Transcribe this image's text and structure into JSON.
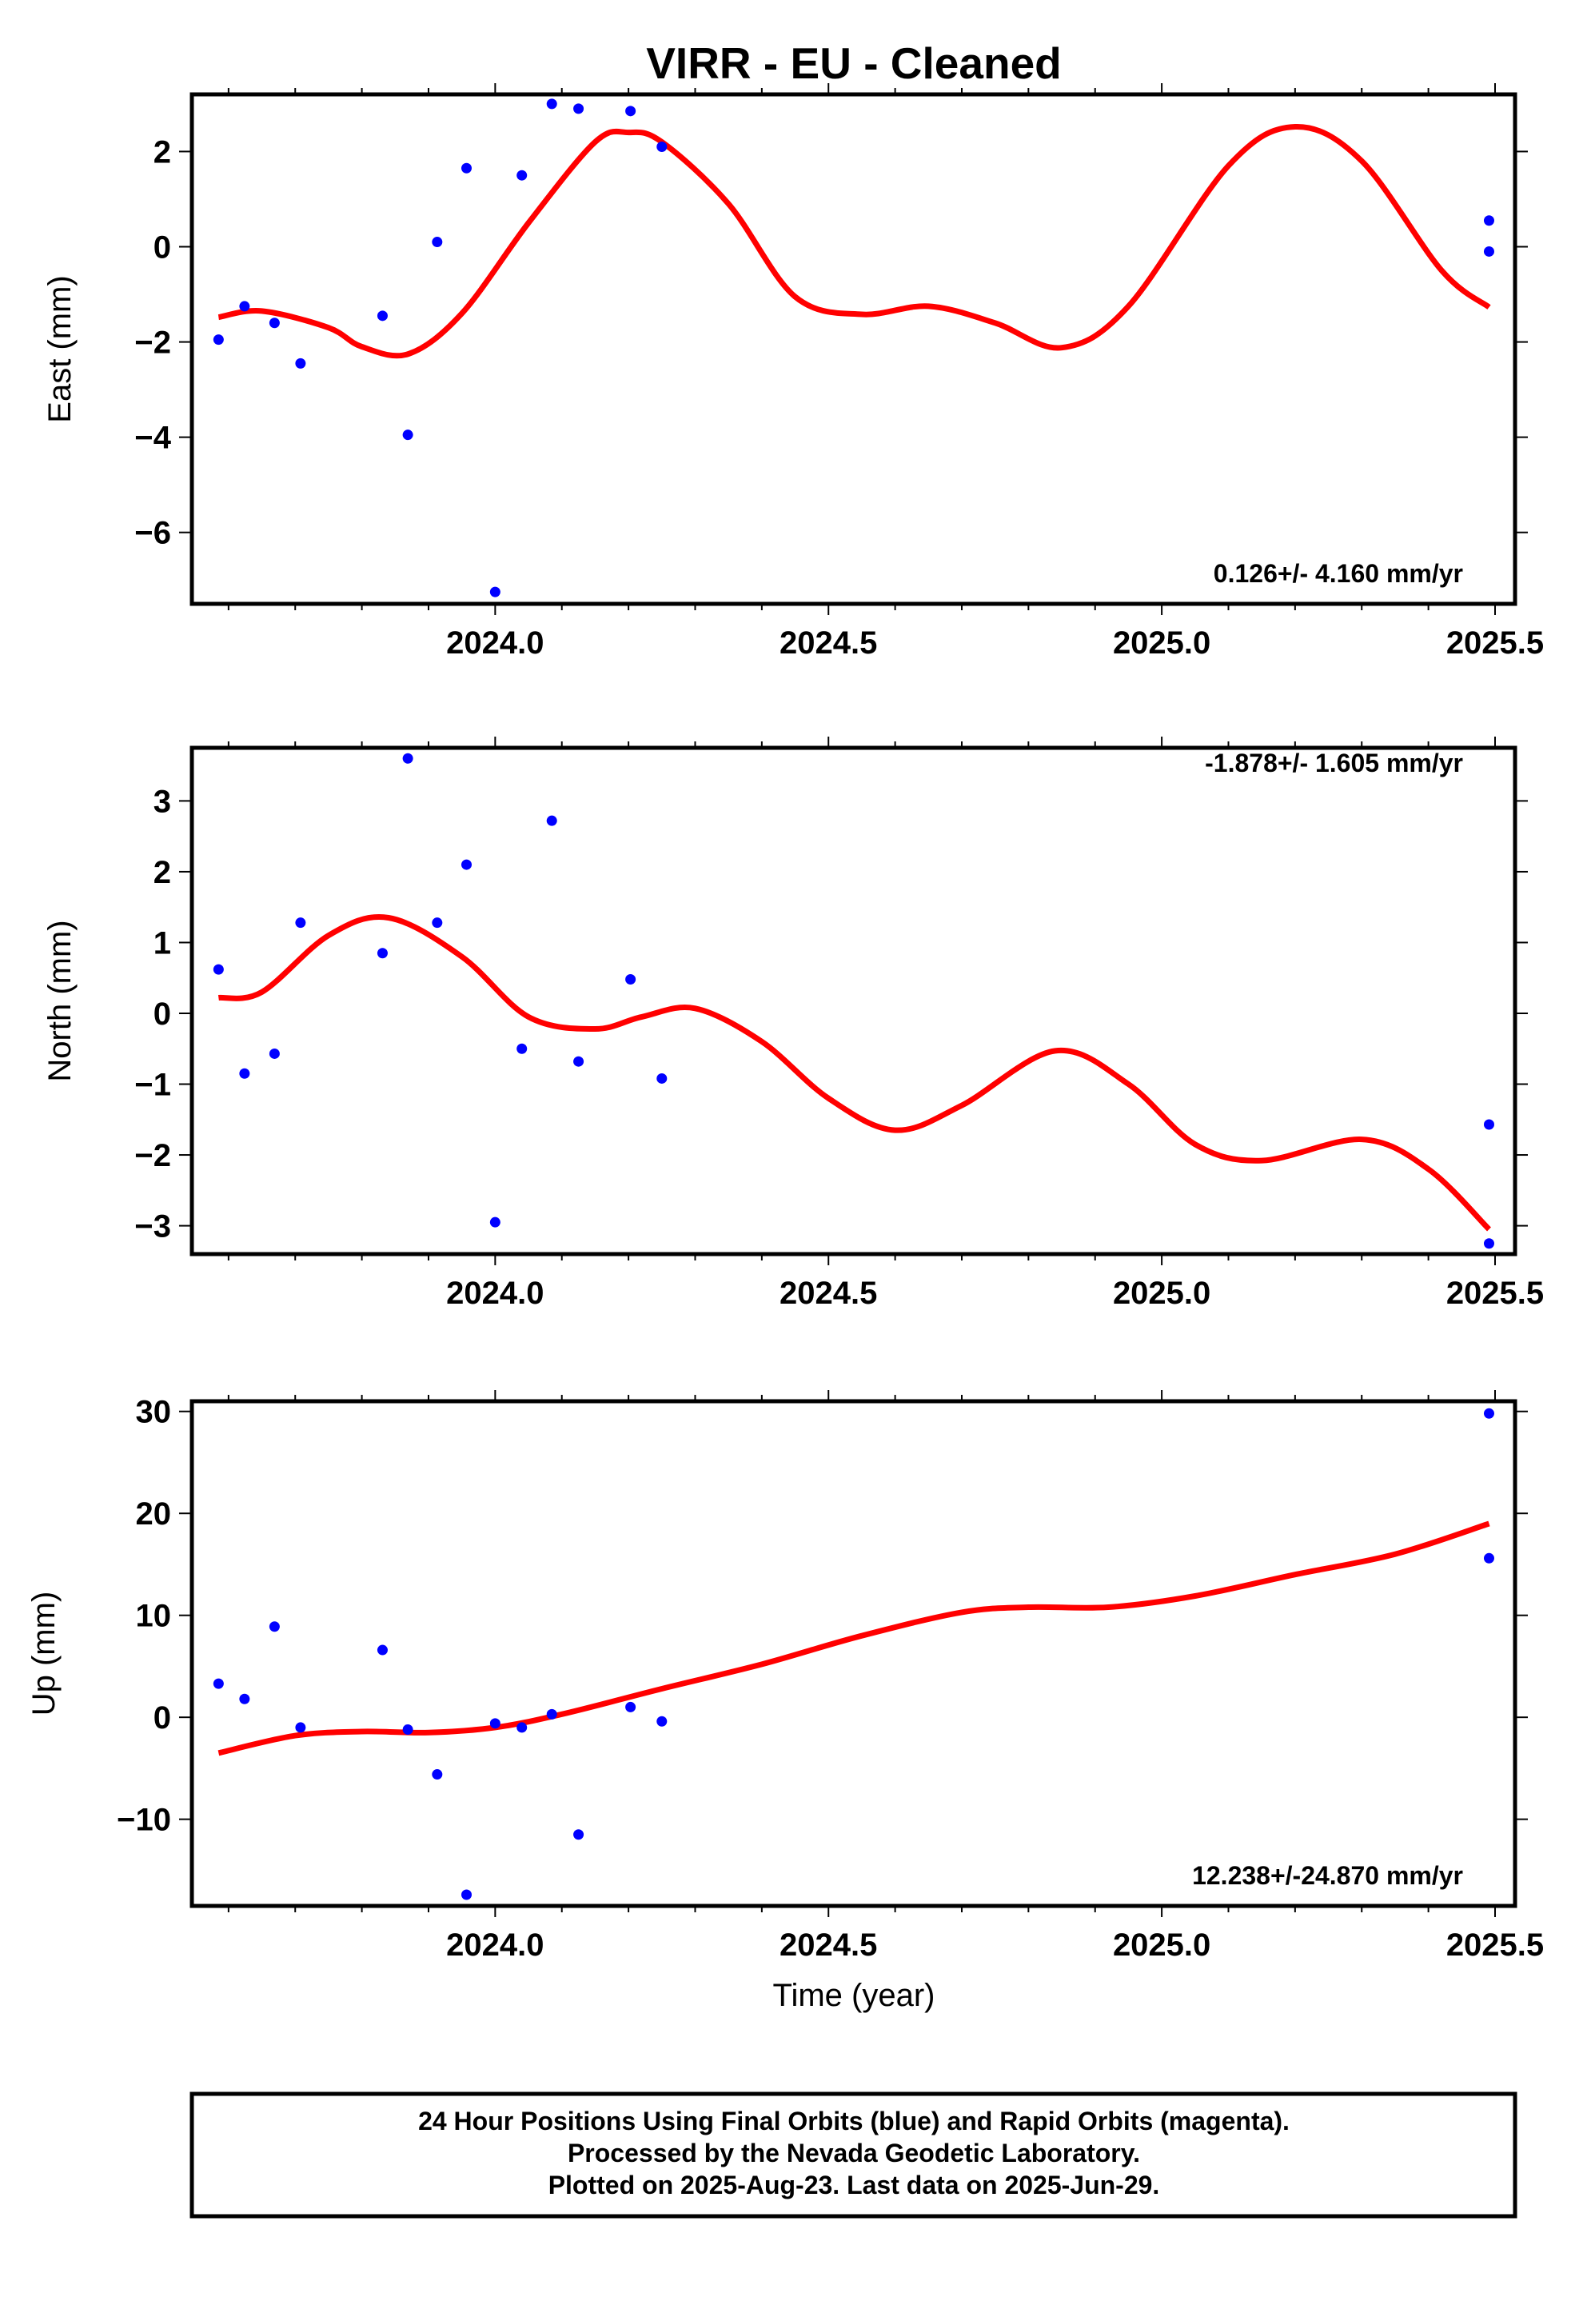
{
  "chart_data": {
    "type": "scatter",
    "title": "VIRR  - EU - Cleaned",
    "xlabel": "Time (year)",
    "xlim": [
      2023.545,
      2025.53
    ],
    "x_ticks": [
      "2024.0",
      "2024.5",
      "2025.0",
      "2025.5"
    ],
    "colors": {
      "data_points": "#0000ff",
      "model_curve": "#ff0000",
      "frame": "#000000"
    },
    "panels": [
      {
        "id": "east",
        "ylabel": "East (mm)",
        "ylim": [
          -7.5,
          3.2
        ],
        "y_ticks": [
          "2",
          "0",
          "−2",
          "−4",
          "−6"
        ],
        "rate_label": "0.126+/- 4.160 mm/yr",
        "points": [
          [
            2023.585,
            -1.95
          ],
          [
            2023.624,
            -1.25
          ],
          [
            2023.669,
            -1.6
          ],
          [
            2023.708,
            -2.45
          ],
          [
            2023.831,
            -1.45
          ],
          [
            2023.869,
            -3.95
          ],
          [
            2023.913,
            0.1
          ],
          [
            2023.957,
            1.65
          ],
          [
            2024.0,
            -7.25
          ],
          [
            2024.04,
            1.5
          ],
          [
            2024.085,
            3.0
          ],
          [
            2024.125,
            2.9
          ],
          [
            2024.203,
            2.85
          ],
          [
            2024.25,
            2.1
          ],
          [
            2025.491,
            0.55
          ],
          [
            2025.491,
            -0.1
          ]
        ],
        "curve": [
          [
            2023.585,
            -1.48
          ],
          [
            2023.65,
            -1.35
          ],
          [
            2023.75,
            -1.7
          ],
          [
            2023.8,
            -2.1
          ],
          [
            2023.87,
            -2.25
          ],
          [
            2023.95,
            -1.4
          ],
          [
            2024.05,
            0.5
          ],
          [
            2024.15,
            2.2
          ],
          [
            2024.2,
            2.4
          ],
          [
            2024.25,
            2.2
          ],
          [
            2024.35,
            0.9
          ],
          [
            2024.45,
            -1.05
          ],
          [
            2024.55,
            -1.42
          ],
          [
            2024.65,
            -1.25
          ],
          [
            2024.75,
            -1.6
          ],
          [
            2024.85,
            -2.12
          ],
          [
            2024.95,
            -1.25
          ],
          [
            2025.1,
            1.7
          ],
          [
            2025.2,
            2.52
          ],
          [
            2025.3,
            1.8
          ],
          [
            2025.42,
            -0.5
          ],
          [
            2025.491,
            -1.27
          ]
        ]
      },
      {
        "id": "north",
        "ylabel": "North (mm)",
        "ylim": [
          -3.4,
          3.75
        ],
        "y_ticks": [
          "3",
          "2",
          "1",
          "0",
          "−1",
          "−2",
          "−3"
        ],
        "rate_label": "-1.878+/- 1.605 mm/yr",
        "points": [
          [
            2023.585,
            0.62
          ],
          [
            2023.624,
            -0.85
          ],
          [
            2023.669,
            -0.57
          ],
          [
            2023.708,
            1.28
          ],
          [
            2023.831,
            0.85
          ],
          [
            2023.869,
            3.6
          ],
          [
            2023.913,
            1.28
          ],
          [
            2023.957,
            2.1
          ],
          [
            2024.0,
            -2.95
          ],
          [
            2024.04,
            -0.5
          ],
          [
            2024.085,
            2.72
          ],
          [
            2024.125,
            -0.68
          ],
          [
            2024.203,
            0.48
          ],
          [
            2024.25,
            -0.92
          ],
          [
            2025.491,
            -1.57
          ],
          [
            2025.491,
            -3.25
          ]
        ],
        "curve": [
          [
            2023.585,
            0.22
          ],
          [
            2023.65,
            0.3
          ],
          [
            2023.75,
            1.1
          ],
          [
            2023.84,
            1.35
          ],
          [
            2023.95,
            0.8
          ],
          [
            2024.05,
            -0.05
          ],
          [
            2024.15,
            -0.22
          ],
          [
            2024.22,
            -0.05
          ],
          [
            2024.3,
            0.07
          ],
          [
            2024.4,
            -0.4
          ],
          [
            2024.5,
            -1.2
          ],
          [
            2024.6,
            -1.65
          ],
          [
            2024.7,
            -1.3
          ],
          [
            2024.84,
            -0.53
          ],
          [
            2024.95,
            -1.0
          ],
          [
            2025.05,
            -1.85
          ],
          [
            2025.15,
            -2.08
          ],
          [
            2025.3,
            -1.78
          ],
          [
            2025.4,
            -2.2
          ],
          [
            2025.491,
            -3.05
          ]
        ]
      },
      {
        "id": "up",
        "ylabel": "Up (mm)",
        "ylim": [
          -18.5,
          31
        ],
        "y_ticks": [
          "30",
          "20",
          "10",
          "0",
          "−10"
        ],
        "rate_label": "12.238+/-24.870 mm/yr",
        "points": [
          [
            2023.585,
            3.3
          ],
          [
            2023.624,
            1.8
          ],
          [
            2023.669,
            8.9
          ],
          [
            2023.708,
            -1.0
          ],
          [
            2023.831,
            6.6
          ],
          [
            2023.869,
            -1.2
          ],
          [
            2023.913,
            -5.6
          ],
          [
            2023.957,
            -17.4
          ],
          [
            2024.0,
            -0.6
          ],
          [
            2024.04,
            -1.0
          ],
          [
            2024.085,
            0.3
          ],
          [
            2024.125,
            -11.5
          ],
          [
            2024.203,
            1.0
          ],
          [
            2024.25,
            -0.4
          ],
          [
            2025.491,
            29.8
          ],
          [
            2025.491,
            15.6
          ]
        ],
        "curve": [
          [
            2023.585,
            -3.5
          ],
          [
            2023.7,
            -1.8
          ],
          [
            2023.8,
            -1.4
          ],
          [
            2023.9,
            -1.5
          ],
          [
            2024.0,
            -1.0
          ],
          [
            2024.1,
            0.3
          ],
          [
            2024.25,
            2.8
          ],
          [
            2024.4,
            5.2
          ],
          [
            2024.55,
            8.0
          ],
          [
            2024.7,
            10.3
          ],
          [
            2024.8,
            10.8
          ],
          [
            2024.92,
            10.8
          ],
          [
            2025.05,
            11.9
          ],
          [
            2025.2,
            14.0
          ],
          [
            2025.35,
            16.0
          ],
          [
            2025.491,
            19.0
          ]
        ]
      }
    ]
  },
  "footer": {
    "line1": "24 Hour Positions Using Final Orbits (blue) and Rapid Orbits (magenta).",
    "line2": "Processed by the Nevada Geodetic Laboratory.",
    "line3": "Plotted on 2025-Aug-23. Last data on 2025-Jun-29."
  }
}
